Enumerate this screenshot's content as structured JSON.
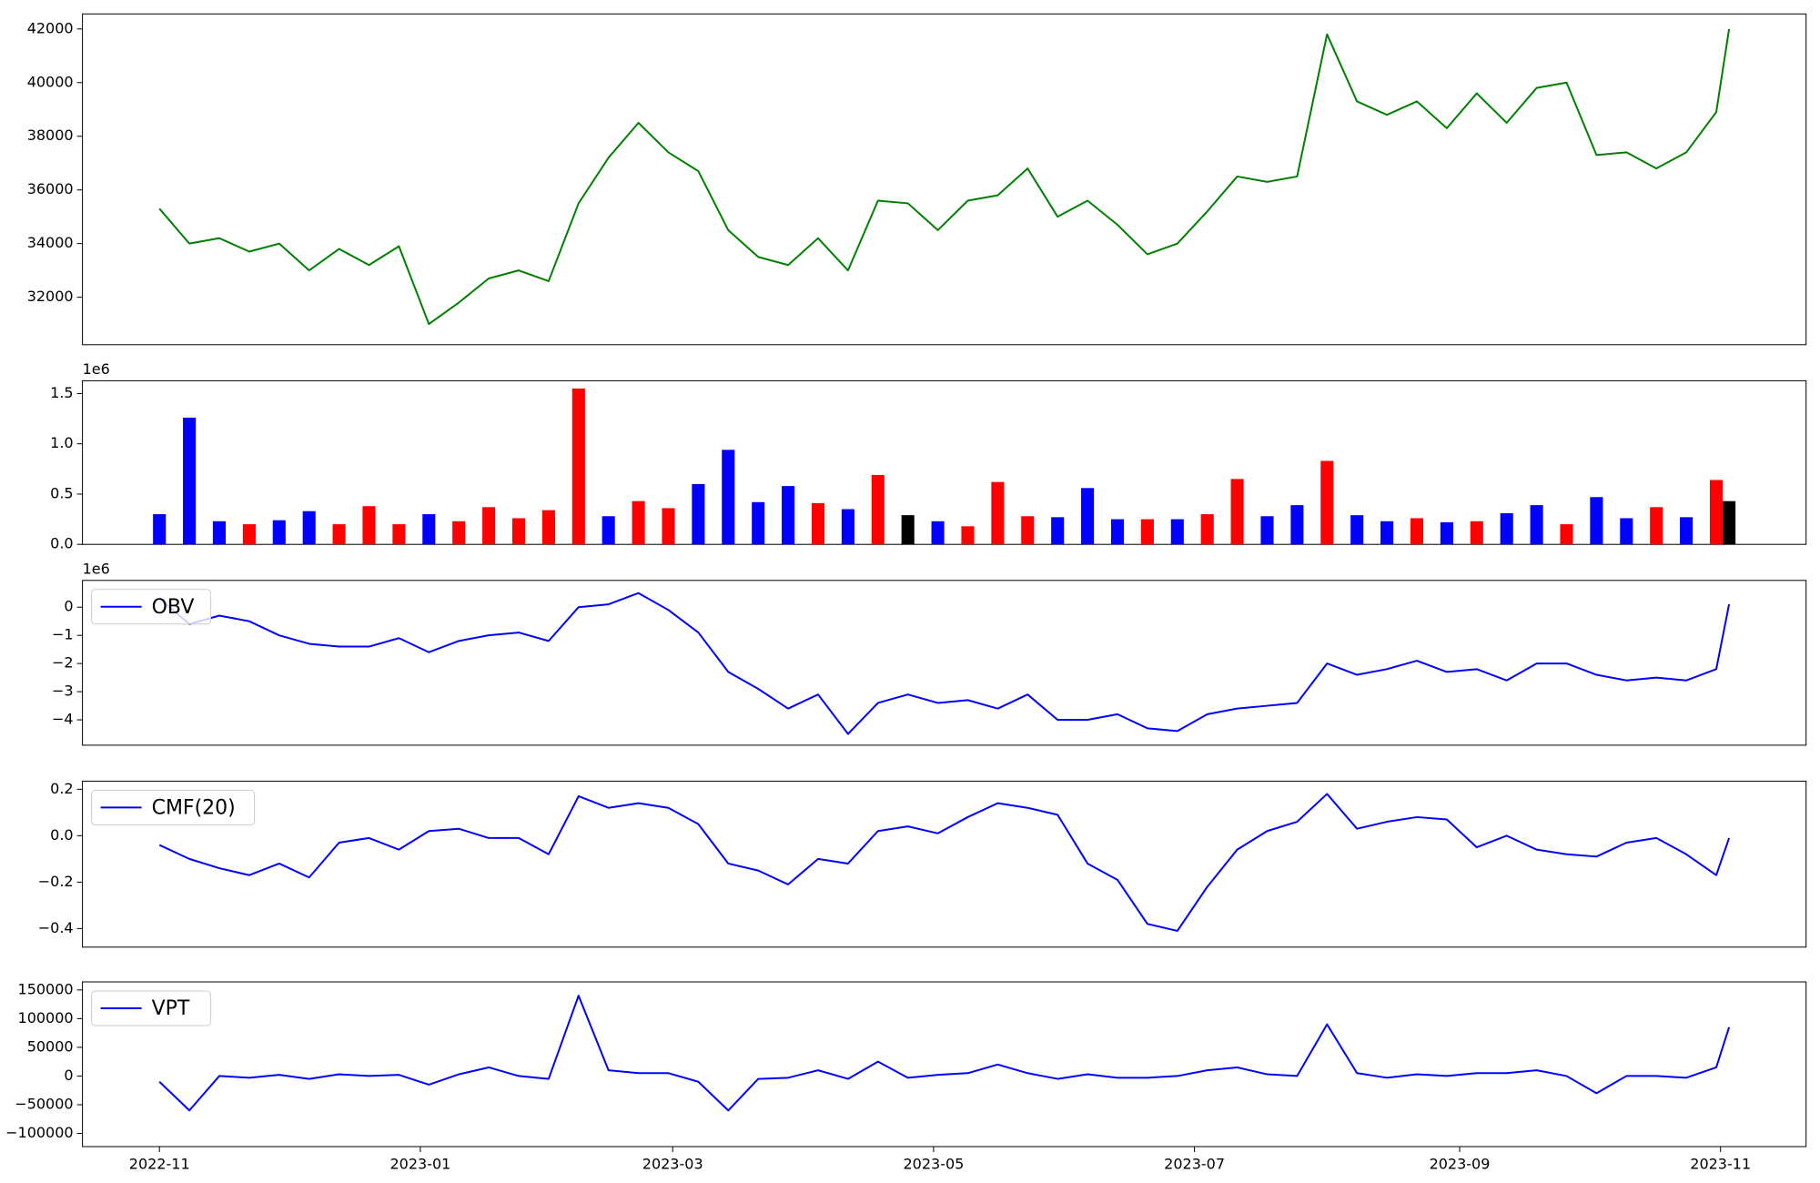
{
  "chart_data": [
    {
      "type": "line",
      "color": "green",
      "x": [
        "2022-11-01",
        "2022-11-08",
        "2022-11-15",
        "2022-11-22",
        "2022-11-29",
        "2022-12-06",
        "2022-12-13",
        "2022-12-20",
        "2022-12-27",
        "2023-01-03",
        "2023-01-10",
        "2023-01-17",
        "2023-01-24",
        "2023-01-31",
        "2023-02-07",
        "2023-02-14",
        "2023-02-21",
        "2023-02-28",
        "2023-03-07",
        "2023-03-14",
        "2023-03-21",
        "2023-03-28",
        "2023-04-04",
        "2023-04-11",
        "2023-04-18",
        "2023-04-25",
        "2023-05-02",
        "2023-05-09",
        "2023-05-16",
        "2023-05-23",
        "2023-05-30",
        "2023-06-06",
        "2023-06-13",
        "2023-06-20",
        "2023-06-27",
        "2023-07-04",
        "2023-07-11",
        "2023-07-18",
        "2023-07-25",
        "2023-08-01",
        "2023-08-08",
        "2023-08-15",
        "2023-08-22",
        "2023-08-29",
        "2023-09-05",
        "2023-09-12",
        "2023-09-19",
        "2023-09-26",
        "2023-10-03",
        "2023-10-10",
        "2023-10-17",
        "2023-10-24",
        "2023-10-31",
        "2023-11-03"
      ],
      "values": [
        35300,
        34000,
        34200,
        33700,
        34000,
        33000,
        33800,
        33200,
        33900,
        31000,
        31800,
        32700,
        33000,
        32600,
        35500,
        37200,
        38500,
        37400,
        36700,
        34500,
        33500,
        33200,
        34200,
        33000,
        35600,
        35500,
        34500,
        35600,
        35800,
        36800,
        35000,
        35600,
        34700,
        33600,
        34000,
        35200,
        36500,
        36300,
        36500,
        41800,
        39300,
        38800,
        39300,
        38300,
        39600,
        38500,
        39800,
        40000,
        37300,
        37400,
        36800,
        37400,
        38900,
        42000
      ],
      "xlim": [
        "2022-10-14",
        "2023-11-21"
      ],
      "ylim": [
        30230,
        42560
      ],
      "yticks": [
        32000,
        34000,
        36000,
        38000,
        40000,
        42000
      ]
    },
    {
      "type": "bar",
      "y_offset_label": "1e6",
      "x": [
        "2022-11-01",
        "2022-11-08",
        "2022-11-15",
        "2022-11-22",
        "2022-11-29",
        "2022-12-06",
        "2022-12-13",
        "2022-12-20",
        "2022-12-27",
        "2023-01-03",
        "2023-01-10",
        "2023-01-17",
        "2023-01-24",
        "2023-01-31",
        "2023-02-07",
        "2023-02-14",
        "2023-02-21",
        "2023-02-28",
        "2023-03-07",
        "2023-03-14",
        "2023-03-21",
        "2023-03-28",
        "2023-04-04",
        "2023-04-11",
        "2023-04-18",
        "2023-04-25",
        "2023-05-02",
        "2023-05-09",
        "2023-05-16",
        "2023-05-23",
        "2023-05-30",
        "2023-06-06",
        "2023-06-13",
        "2023-06-20",
        "2023-06-27",
        "2023-07-04",
        "2023-07-11",
        "2023-07-18",
        "2023-07-25",
        "2023-08-01",
        "2023-08-08",
        "2023-08-15",
        "2023-08-22",
        "2023-08-29",
        "2023-09-05",
        "2023-09-12",
        "2023-09-19",
        "2023-09-26",
        "2023-10-03",
        "2023-10-10",
        "2023-10-17",
        "2023-10-24",
        "2023-10-31",
        "2023-11-03"
      ],
      "values": [
        300000,
        1260000,
        230000,
        200000,
        240000,
        330000,
        200000,
        380000,
        200000,
        300000,
        230000,
        370000,
        260000,
        340000,
        1550000,
        280000,
        430000,
        360000,
        600000,
        940000,
        420000,
        580000,
        410000,
        350000,
        690000,
        290000,
        230000,
        180000,
        620000,
        280000,
        270000,
        560000,
        250000,
        250000,
        250000,
        300000,
        650000,
        280000,
        390000,
        830000,
        290000,
        230000,
        260000,
        220000,
        230000,
        310000,
        390000,
        200000,
        470000,
        260000,
        370000,
        270000,
        640000,
        430000
      ],
      "colors": [
        "blue",
        "blue",
        "blue",
        "red",
        "blue",
        "blue",
        "red",
        "red",
        "red",
        "blue",
        "red",
        "red",
        "red",
        "red",
        "red",
        "blue",
        "red",
        "red",
        "blue",
        "blue",
        "blue",
        "blue",
        "red",
        "blue",
        "red",
        "black",
        "blue",
        "red",
        "red",
        "red",
        "blue",
        "blue",
        "blue",
        "red",
        "blue",
        "red",
        "red",
        "blue",
        "blue",
        "red",
        "blue",
        "blue",
        "red",
        "blue",
        "red",
        "blue",
        "blue",
        "red",
        "blue",
        "blue",
        "red",
        "blue",
        "red",
        "black"
      ],
      "xlim": [
        "2022-10-14",
        "2023-11-21"
      ],
      "ylim": [
        0,
        1627000
      ],
      "yticks": [
        {
          "value": 0,
          "label": "0.0"
        },
        {
          "value": 500000,
          "label": "0.5"
        },
        {
          "value": 1000000,
          "label": "1.0"
        },
        {
          "value": 1500000,
          "label": "1.5"
        }
      ]
    },
    {
      "type": "line",
      "y_offset_label": "1e6",
      "legend": "upper left",
      "x": [
        "2022-11-01",
        "2022-11-08",
        "2022-11-15",
        "2022-11-22",
        "2022-11-29",
        "2022-12-06",
        "2022-12-13",
        "2022-12-20",
        "2022-12-27",
        "2023-01-03",
        "2023-01-10",
        "2023-01-17",
        "2023-01-24",
        "2023-01-31",
        "2023-02-07",
        "2023-02-14",
        "2023-02-21",
        "2023-02-28",
        "2023-03-07",
        "2023-03-14",
        "2023-03-21",
        "2023-03-28",
        "2023-04-04",
        "2023-04-11",
        "2023-04-18",
        "2023-04-25",
        "2023-05-02",
        "2023-05-09",
        "2023-05-16",
        "2023-05-23",
        "2023-05-30",
        "2023-06-06",
        "2023-06-13",
        "2023-06-20",
        "2023-06-27",
        "2023-07-04",
        "2023-07-11",
        "2023-07-18",
        "2023-07-25",
        "2023-08-01",
        "2023-08-08",
        "2023-08-15",
        "2023-08-22",
        "2023-08-29",
        "2023-09-05",
        "2023-09-12",
        "2023-09-19",
        "2023-09-26",
        "2023-10-03",
        "2023-10-10",
        "2023-10-17",
        "2023-10-24",
        "2023-10-31",
        "2023-11-03"
      ],
      "series": [
        {
          "name": "OBV",
          "color": "blue",
          "values": [
            300000,
            -600000,
            -300000,
            -500000,
            -1000000,
            -1300000,
            -1400000,
            -1400000,
            -1100000,
            -1600000,
            -1200000,
            -1000000,
            -900000,
            -1200000,
            0,
            100000,
            500000,
            -100000,
            -900000,
            -2300000,
            -2900000,
            -3600000,
            -3100000,
            -4500000,
            -3400000,
            -3100000,
            -3400000,
            -3300000,
            -3600000,
            -3100000,
            -4000000,
            -4000000,
            -3800000,
            -4300000,
            -4400000,
            -3800000,
            -3600000,
            -3500000,
            -3400000,
            -2000000,
            -2400000,
            -2200000,
            -1900000,
            -2300000,
            -2200000,
            -2600000,
            -2000000,
            -2000000,
            -2400000,
            -2600000,
            -2500000,
            -2600000,
            -2200000,
            100000
          ]
        }
      ],
      "xlim": [
        "2022-10-14",
        "2023-11-21"
      ],
      "ylim": [
        -4900000,
        950000
      ],
      "yticks": [
        {
          "value": 0,
          "label": "0"
        },
        {
          "value": -1000000,
          "label": "−1"
        },
        {
          "value": -2000000,
          "label": "−2"
        },
        {
          "value": -3000000,
          "label": "−3"
        },
        {
          "value": -4000000,
          "label": "−4"
        }
      ]
    },
    {
      "type": "line",
      "legend": "upper left",
      "x": [
        "2022-11-01",
        "2022-11-08",
        "2022-11-15",
        "2022-11-22",
        "2022-11-29",
        "2022-12-06",
        "2022-12-13",
        "2022-12-20",
        "2022-12-27",
        "2023-01-03",
        "2023-01-10",
        "2023-01-17",
        "2023-01-24",
        "2023-01-31",
        "2023-02-07",
        "2023-02-14",
        "2023-02-21",
        "2023-02-28",
        "2023-03-07",
        "2023-03-14",
        "2023-03-21",
        "2023-03-28",
        "2023-04-04",
        "2023-04-11",
        "2023-04-18",
        "2023-04-25",
        "2023-05-02",
        "2023-05-09",
        "2023-05-16",
        "2023-05-23",
        "2023-05-30",
        "2023-06-06",
        "2023-06-13",
        "2023-06-20",
        "2023-06-27",
        "2023-07-04",
        "2023-07-11",
        "2023-07-18",
        "2023-07-25",
        "2023-08-01",
        "2023-08-08",
        "2023-08-15",
        "2023-08-22",
        "2023-08-29",
        "2023-09-05",
        "2023-09-12",
        "2023-09-19",
        "2023-09-26",
        "2023-10-03",
        "2023-10-10",
        "2023-10-17",
        "2023-10-24",
        "2023-10-31",
        "2023-11-03"
      ],
      "series": [
        {
          "name": "CMF(20)",
          "color": "blue",
          "values": [
            -0.04,
            -0.1,
            -0.14,
            -0.17,
            -0.12,
            -0.18,
            -0.03,
            -0.01,
            -0.06,
            0.02,
            0.03,
            -0.01,
            -0.01,
            -0.08,
            0.17,
            0.12,
            0.14,
            0.12,
            0.05,
            -0.12,
            -0.15,
            -0.21,
            -0.1,
            -0.12,
            0.02,
            0.04,
            0.01,
            0.08,
            0.14,
            0.12,
            0.09,
            -0.12,
            -0.19,
            -0.38,
            -0.41,
            -0.22,
            -0.06,
            0.02,
            0.06,
            0.18,
            0.03,
            0.06,
            0.08,
            0.07,
            -0.05,
            0.0,
            -0.06,
            -0.08,
            -0.09,
            -0.03,
            -0.01,
            -0.08,
            -0.17,
            -0.01
          ]
        }
      ],
      "xlim": [
        "2022-10-14",
        "2023-11-21"
      ],
      "ylim": [
        -0.48,
        0.235
      ],
      "yticks": [
        {
          "value": 0.2,
          "label": "0.2"
        },
        {
          "value": 0,
          "label": "0.0"
        },
        {
          "value": -0.2,
          "label": "−0.2"
        },
        {
          "value": -0.4,
          "label": "−0.4"
        }
      ]
    },
    {
      "type": "line",
      "legend": "upper left",
      "x": [
        "2022-11-01",
        "2022-11-08",
        "2022-11-15",
        "2022-11-22",
        "2022-11-29",
        "2022-12-06",
        "2022-12-13",
        "2022-12-20",
        "2022-12-27",
        "2023-01-03",
        "2023-01-10",
        "2023-01-17",
        "2023-01-24",
        "2023-01-31",
        "2023-02-07",
        "2023-02-14",
        "2023-02-21",
        "2023-02-28",
        "2023-03-07",
        "2023-03-14",
        "2023-03-21",
        "2023-03-28",
        "2023-04-04",
        "2023-04-11",
        "2023-04-18",
        "2023-04-25",
        "2023-05-02",
        "2023-05-09",
        "2023-05-16",
        "2023-05-23",
        "2023-05-30",
        "2023-06-06",
        "2023-06-13",
        "2023-06-20",
        "2023-06-27",
        "2023-07-04",
        "2023-07-11",
        "2023-07-18",
        "2023-07-25",
        "2023-08-01",
        "2023-08-08",
        "2023-08-15",
        "2023-08-22",
        "2023-08-29",
        "2023-09-05",
        "2023-09-12",
        "2023-09-19",
        "2023-09-26",
        "2023-10-03",
        "2023-10-10",
        "2023-10-17",
        "2023-10-24",
        "2023-10-31",
        "2023-11-03"
      ],
      "series": [
        {
          "name": "VPT",
          "color": "blue",
          "values": [
            -10000,
            -60000,
            0,
            -3000,
            2000,
            -5000,
            3000,
            0,
            2000,
            -15000,
            3000,
            15000,
            0,
            -5000,
            140000,
            10000,
            5000,
            5000,
            -10000,
            -60000,
            -5000,
            -3000,
            10000,
            -5000,
            25000,
            -3000,
            2000,
            5000,
            20000,
            5000,
            -5000,
            3000,
            -3000,
            -3000,
            0,
            10000,
            15000,
            3000,
            0,
            90000,
            5000,
            -3000,
            3000,
            0,
            5000,
            5000,
            10000,
            0,
            -30000,
            0,
            0,
            -3000,
            15000,
            85000
          ]
        }
      ],
      "xlim": [
        "2022-10-14",
        "2023-11-21"
      ],
      "ylim": [
        -123000,
        164000
      ],
      "yticks": [
        150000,
        100000,
        50000,
        0,
        {
          "value": -50000,
          "label": "−50000"
        },
        {
          "value": -100000,
          "label": "−100000"
        }
      ],
      "xticks": [
        {
          "value": "2022-11-01",
          "label": "2022-11"
        },
        {
          "value": "2023-01-01",
          "label": "2023-01"
        },
        {
          "value": "2023-03-01",
          "label": "2023-03"
        },
        {
          "value": "2023-05-01",
          "label": "2023-05"
        },
        {
          "value": "2023-07-01",
          "label": "2023-07"
        },
        {
          "value": "2023-09-01",
          "label": "2023-09"
        },
        {
          "value": "2023-11-01",
          "label": "2023-11"
        }
      ]
    }
  ]
}
